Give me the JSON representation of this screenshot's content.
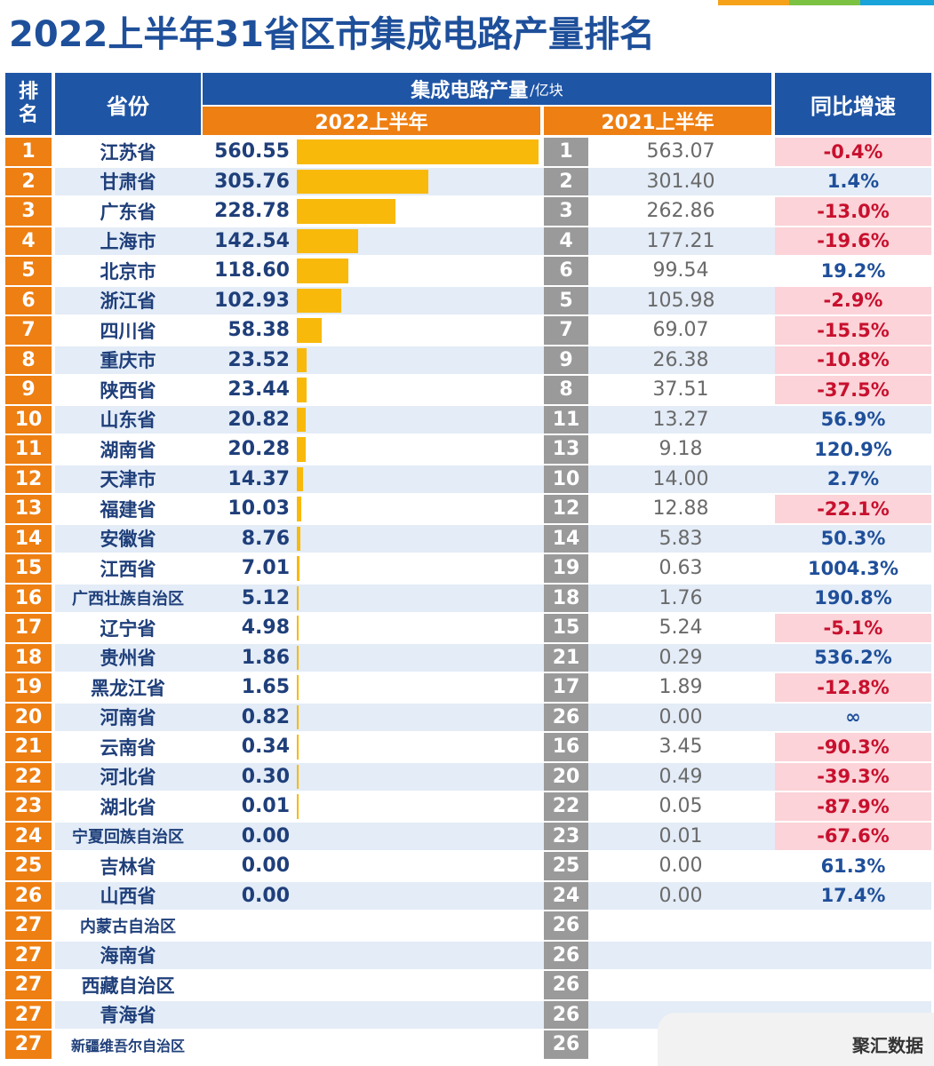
{
  "title": "2022上半年31省区市集成电路产量排名",
  "colors": {
    "header_blue": "#1f55a5",
    "header_orange": "#ee7f12",
    "bar_yellow": "#f9b90b",
    "rank_2021_gray": "#9a9a9a",
    "negative_bg": "#fbd3d8",
    "negative_text": "#c8102e",
    "positive_text": "#1f4f9a",
    "row_stripe": "#e3ecf7"
  },
  "header": {
    "rank": "排名",
    "province": "省份",
    "output": "集成电路产量",
    "unit": "/亿块",
    "h1_2022": "2022上半年",
    "h1_2021": "2021上半年",
    "yoy": "同比增速"
  },
  "watermark": "聚汇数据",
  "chart_data": {
    "type": "table",
    "columns": [
      "排名",
      "省份",
      "2022上半年",
      "2021上半年排名",
      "2021上半年",
      "同比增速"
    ],
    "rows": [
      {
        "rank": "1",
        "province": "江苏省",
        "v2022": "560.55",
        "value_2022": 560.55,
        "rank2021": "1",
        "v2021": "563.07",
        "yoy": "-0.4%",
        "neg": true
      },
      {
        "rank": "2",
        "province": "甘肃省",
        "v2022": "305.76",
        "value_2022": 305.76,
        "rank2021": "2",
        "v2021": "301.40",
        "yoy": "1.4%",
        "neg": false
      },
      {
        "rank": "3",
        "province": "广东省",
        "v2022": "228.78",
        "value_2022": 228.78,
        "rank2021": "3",
        "v2021": "262.86",
        "yoy": "-13.0%",
        "neg": true
      },
      {
        "rank": "4",
        "province": "上海市",
        "v2022": "142.54",
        "value_2022": 142.54,
        "rank2021": "4",
        "v2021": "177.21",
        "yoy": "-19.6%",
        "neg": true
      },
      {
        "rank": "5",
        "province": "北京市",
        "v2022": "118.60",
        "value_2022": 118.6,
        "rank2021": "6",
        "v2021": "99.54",
        "yoy": "19.2%",
        "neg": false
      },
      {
        "rank": "6",
        "province": "浙江省",
        "v2022": "102.93",
        "value_2022": 102.93,
        "rank2021": "5",
        "v2021": "105.98",
        "yoy": "-2.9%",
        "neg": true
      },
      {
        "rank": "7",
        "province": "四川省",
        "v2022": "58.38",
        "value_2022": 58.38,
        "rank2021": "7",
        "v2021": "69.07",
        "yoy": "-15.5%",
        "neg": true
      },
      {
        "rank": "8",
        "province": "重庆市",
        "v2022": "23.52",
        "value_2022": 23.52,
        "rank2021": "9",
        "v2021": "26.38",
        "yoy": "-10.8%",
        "neg": true
      },
      {
        "rank": "9",
        "province": "陕西省",
        "v2022": "23.44",
        "value_2022": 23.44,
        "rank2021": "8",
        "v2021": "37.51",
        "yoy": "-37.5%",
        "neg": true
      },
      {
        "rank": "10",
        "province": "山东省",
        "v2022": "20.82",
        "value_2022": 20.82,
        "rank2021": "11",
        "v2021": "13.27",
        "yoy": "56.9%",
        "neg": false
      },
      {
        "rank": "11",
        "province": "湖南省",
        "v2022": "20.28",
        "value_2022": 20.28,
        "rank2021": "13",
        "v2021": "9.18",
        "yoy": "120.9%",
        "neg": false
      },
      {
        "rank": "12",
        "province": "天津市",
        "v2022": "14.37",
        "value_2022": 14.37,
        "rank2021": "10",
        "v2021": "14.00",
        "yoy": "2.7%",
        "neg": false
      },
      {
        "rank": "13",
        "province": "福建省",
        "v2022": "10.03",
        "value_2022": 10.03,
        "rank2021": "12",
        "v2021": "12.88",
        "yoy": "-22.1%",
        "neg": true
      },
      {
        "rank": "14",
        "province": "安徽省",
        "v2022": "8.76",
        "value_2022": 8.76,
        "rank2021": "14",
        "v2021": "5.83",
        "yoy": "50.3%",
        "neg": false
      },
      {
        "rank": "15",
        "province": "江西省",
        "v2022": "7.01",
        "value_2022": 7.01,
        "rank2021": "19",
        "v2021": "0.63",
        "yoy": "1004.3%",
        "neg": false
      },
      {
        "rank": "16",
        "province": "广西壮族自治区",
        "v2022": "5.12",
        "value_2022": 5.12,
        "rank2021": "18",
        "v2021": "1.76",
        "yoy": "190.8%",
        "neg": false
      },
      {
        "rank": "17",
        "province": "辽宁省",
        "v2022": "4.98",
        "value_2022": 4.98,
        "rank2021": "15",
        "v2021": "5.24",
        "yoy": "-5.1%",
        "neg": true
      },
      {
        "rank": "18",
        "province": "贵州省",
        "v2022": "1.86",
        "value_2022": 1.86,
        "rank2021": "21",
        "v2021": "0.29",
        "yoy": "536.2%",
        "neg": false
      },
      {
        "rank": "19",
        "province": "黑龙江省",
        "v2022": "1.65",
        "value_2022": 1.65,
        "rank2021": "17",
        "v2021": "1.89",
        "yoy": "-12.8%",
        "neg": true
      },
      {
        "rank": "20",
        "province": "河南省",
        "v2022": "0.82",
        "value_2022": 0.82,
        "rank2021": "26",
        "v2021": "0.00",
        "yoy": "∞",
        "neg": false
      },
      {
        "rank": "21",
        "province": "云南省",
        "v2022": "0.34",
        "value_2022": 0.34,
        "rank2021": "16",
        "v2021": "3.45",
        "yoy": "-90.3%",
        "neg": true
      },
      {
        "rank": "22",
        "province": "河北省",
        "v2022": "0.30",
        "value_2022": 0.3,
        "rank2021": "20",
        "v2021": "0.49",
        "yoy": "-39.3%",
        "neg": true
      },
      {
        "rank": "23",
        "province": "湖北省",
        "v2022": "0.01",
        "value_2022": 0.01,
        "rank2021": "22",
        "v2021": "0.05",
        "yoy": "-87.9%",
        "neg": true
      },
      {
        "rank": "24",
        "province": "宁夏回族自治区",
        "v2022": "0.00",
        "value_2022": 0.0,
        "rank2021": "23",
        "v2021": "0.01",
        "yoy": "-67.6%",
        "neg": true
      },
      {
        "rank": "25",
        "province": "吉林省",
        "v2022": "0.00",
        "value_2022": 0.0,
        "rank2021": "25",
        "v2021": "0.00",
        "yoy": "61.3%",
        "neg": false
      },
      {
        "rank": "26",
        "province": "山西省",
        "v2022": "0.00",
        "value_2022": 0.0,
        "rank2021": "24",
        "v2021": "0.00",
        "yoy": "17.4%",
        "neg": false
      },
      {
        "rank": "27",
        "province": "内蒙古自治区",
        "v2022": "",
        "value_2022": null,
        "rank2021": "26",
        "v2021": "",
        "yoy": "",
        "neg": false
      },
      {
        "rank": "27",
        "province": "海南省",
        "v2022": "",
        "value_2022": null,
        "rank2021": "26",
        "v2021": "",
        "yoy": "",
        "neg": false
      },
      {
        "rank": "27",
        "province": "西藏自治区",
        "v2022": "",
        "value_2022": null,
        "rank2021": "26",
        "v2021": "",
        "yoy": "",
        "neg": false
      },
      {
        "rank": "27",
        "province": "青海省",
        "v2022": "",
        "value_2022": null,
        "rank2021": "26",
        "v2021": "",
        "yoy": "",
        "neg": false
      },
      {
        "rank": "27",
        "province": "新疆维吾尔自治区",
        "v2022": "",
        "value_2022": null,
        "rank2021": "26",
        "v2021": "",
        "yoy": "",
        "neg": false
      }
    ]
  }
}
